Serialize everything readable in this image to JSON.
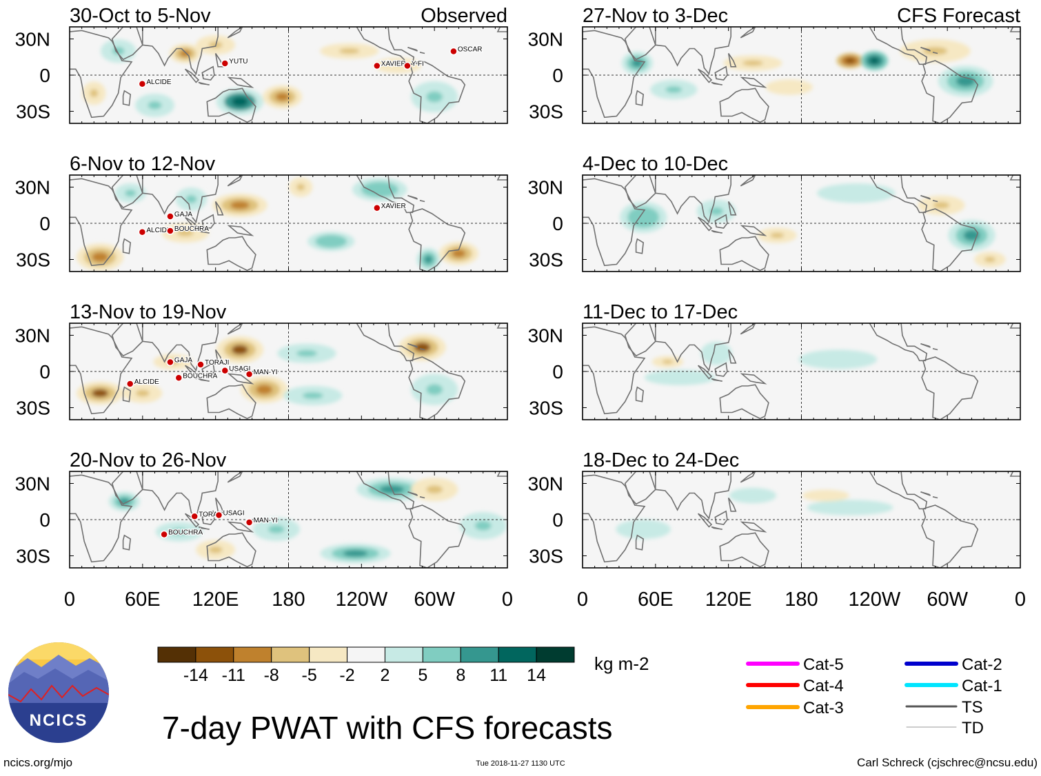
{
  "header": {
    "left_title": "Observed",
    "right_title": "CFS Forecast"
  },
  "lat_labels": [
    "30N",
    "0",
    "30S"
  ],
  "lon_labels": [
    "0",
    "60E",
    "120E",
    "180",
    "120W",
    "60W",
    "0"
  ],
  "panels": {
    "observed": [
      {
        "period": "30-Oct to 5-Nov",
        "storms": [
          "YUTU",
          "OSCAR",
          "XAVIER",
          "Y-FI",
          "ALCIDE"
        ]
      },
      {
        "period": "6-Nov to 12-Nov",
        "storms": [
          "XAVIER",
          "GAJA",
          "ALCIDE",
          "BOUCHRA"
        ]
      },
      {
        "period": "13-Nov to 19-Nov",
        "storms": [
          "GAJA",
          "TORAJI",
          "USAGI",
          "MAN-YI",
          "BOUCHRA",
          "ALCIDE"
        ]
      },
      {
        "period": "20-Nov to 26-Nov",
        "storms": [
          "TORAJI",
          "USAGI",
          "MAN-YI",
          "BOUCHRA"
        ]
      }
    ],
    "forecast": [
      {
        "period": "27-Nov to 3-Dec"
      },
      {
        "period": "4-Dec to 10-Dec"
      },
      {
        "period": "11-Dec to 17-Dec"
      },
      {
        "period": "18-Dec to 24-Dec"
      }
    ]
  },
  "colorbar": {
    "tick_labels": [
      "-14",
      "-11",
      "-8",
      "-5",
      "-2",
      "2",
      "5",
      "8",
      "11",
      "14"
    ],
    "colors": [
      "#543005",
      "#8c510a",
      "#bf812d",
      "#dfc27d",
      "#f6e8c3",
      "#f5f5f5",
      "#c7eae5",
      "#80cdc1",
      "#35978f",
      "#01665e",
      "#003c30"
    ],
    "units": "kg m-2"
  },
  "legend": {
    "items": [
      {
        "label": "Cat-5",
        "color": "#ff00ff"
      },
      {
        "label": "Cat-4",
        "color": "#ff0000"
      },
      {
        "label": "Cat-3",
        "color": "#ffa500"
      },
      {
        "label": "Cat-2",
        "color": "#0000cd"
      },
      {
        "label": "Cat-1",
        "color": "#00e5ff"
      },
      {
        "label": "TS",
        "color": "#555555"
      },
      {
        "label": "TD",
        "color": "#999999"
      }
    ]
  },
  "footer": {
    "logo_text": "NCICS",
    "main_title": "7-day PWAT with CFS forecasts",
    "website": "ncics.org/mjo",
    "timestamp": "Tue 2018-11-27 1130 UTC",
    "author": "Carl Schreck (cjschrec@ncsu.edu)"
  },
  "chart_data": {
    "type": "heatmap",
    "title": "7-day PWAT with CFS forecasts",
    "variable": "Precipitable water anomaly",
    "units": "kg m-2",
    "x_axis": {
      "range_deg": [
        0,
        360
      ],
      "ticks": [
        "0",
        "60E",
        "120E",
        "180",
        "120W",
        "60W",
        "0"
      ]
    },
    "y_axis": {
      "range_deg": [
        -40,
        40
      ],
      "ticks": [
        "30N",
        "0",
        "30S"
      ]
    },
    "contour_levels": [
      -14,
      -11,
      -8,
      -5,
      -2,
      2,
      5,
      8,
      11,
      14
    ],
    "left_column": "Observed",
    "right_column": "CFS Forecast",
    "blobs": [
      {
        "panel": 0,
        "lon": 95,
        "lat": 18,
        "v": -9,
        "rx": 8,
        "ry": 5
      },
      {
        "panel": 0,
        "lon": 120,
        "lat": 25,
        "v": -7,
        "rx": 10,
        "ry": 5
      },
      {
        "panel": 0,
        "lon": 40,
        "lat": 20,
        "v": 7,
        "rx": 9,
        "ry": 6
      },
      {
        "panel": 0,
        "lon": 140,
        "lat": -22,
        "v": 12,
        "rx": 12,
        "ry": 7
      },
      {
        "panel": 0,
        "lon": 175,
        "lat": -18,
        "v": -9,
        "rx": 10,
        "ry": 6
      },
      {
        "panel": 0,
        "lon": 70,
        "lat": -25,
        "v": 7,
        "rx": 10,
        "ry": 6
      },
      {
        "panel": 0,
        "lon": 230,
        "lat": 20,
        "v": -5,
        "rx": 15,
        "ry": 4
      },
      {
        "panel": 0,
        "lon": 300,
        "lat": -18,
        "v": 6,
        "rx": 12,
        "ry": 8
      },
      {
        "panel": 0,
        "lon": 270,
        "lat": 8,
        "v": -4,
        "rx": 12,
        "ry": 4
      },
      {
        "panel": 0,
        "lon": 20,
        "lat": -15,
        "v": -6,
        "rx": 6,
        "ry": 6
      },
      {
        "panel": 1,
        "lon": 140,
        "lat": 15,
        "v": -10,
        "rx": 14,
        "ry": 6
      },
      {
        "panel": 1,
        "lon": 100,
        "lat": 20,
        "v": 7,
        "rx": 8,
        "ry": 6
      },
      {
        "panel": 1,
        "lon": 25,
        "lat": -28,
        "v": -10,
        "rx": 12,
        "ry": 7
      },
      {
        "panel": 1,
        "lon": 95,
        "lat": -8,
        "v": -6,
        "rx": 12,
        "ry": 5
      },
      {
        "panel": 1,
        "lon": 215,
        "lat": -15,
        "v": 8,
        "rx": 12,
        "ry": 5
      },
      {
        "panel": 1,
        "lon": 255,
        "lat": 28,
        "v": 8,
        "rx": 14,
        "ry": 6
      },
      {
        "panel": 1,
        "lon": 320,
        "lat": -25,
        "v": -9,
        "rx": 10,
        "ry": 6
      },
      {
        "panel": 1,
        "lon": 295,
        "lat": -30,
        "v": 9,
        "rx": 6,
        "ry": 6
      },
      {
        "panel": 1,
        "lon": 190,
        "lat": 30,
        "v": -7,
        "rx": 6,
        "ry": 5
      },
      {
        "panel": 1,
        "lon": 50,
        "lat": 25,
        "v": 7,
        "rx": 8,
        "ry": 5
      },
      {
        "panel": 2,
        "lon": 140,
        "lat": 18,
        "v": -11,
        "rx": 12,
        "ry": 7
      },
      {
        "panel": 2,
        "lon": 160,
        "lat": -15,
        "v": -10,
        "rx": 12,
        "ry": 7
      },
      {
        "panel": 2,
        "lon": 25,
        "lat": -18,
        "v": -11,
        "rx": 12,
        "ry": 6
      },
      {
        "panel": 2,
        "lon": 60,
        "lat": -18,
        "v": -7,
        "rx": 10,
        "ry": 5
      },
      {
        "panel": 2,
        "lon": 290,
        "lat": 20,
        "v": -11,
        "rx": 12,
        "ry": 7
      },
      {
        "panel": 2,
        "lon": 195,
        "lat": 15,
        "v": 6,
        "rx": 15,
        "ry": 5
      },
      {
        "panel": 2,
        "lon": 200,
        "lat": -20,
        "v": 7,
        "rx": 15,
        "ry": 5
      },
      {
        "panel": 2,
        "lon": 300,
        "lat": -15,
        "v": 7,
        "rx": 12,
        "ry": 8
      },
      {
        "panel": 2,
        "lon": 85,
        "lat": 8,
        "v": -7,
        "rx": 10,
        "ry": 4
      },
      {
        "panel": 3,
        "lon": 45,
        "lat": 15,
        "v": 11,
        "rx": 8,
        "ry": 5
      },
      {
        "panel": 3,
        "lon": 235,
        "lat": -28,
        "v": 10,
        "rx": 18,
        "ry": 5
      },
      {
        "panel": 3,
        "lon": 265,
        "lat": 25,
        "v": 9,
        "rx": 18,
        "ry": 6
      },
      {
        "panel": 3,
        "lon": 300,
        "lat": 25,
        "v": -6,
        "rx": 12,
        "ry": 6
      },
      {
        "panel": 3,
        "lon": 170,
        "lat": -8,
        "v": 7,
        "rx": 12,
        "ry": 6
      },
      {
        "panel": 3,
        "lon": 90,
        "lat": -10,
        "v": 6,
        "rx": 12,
        "ry": 5
      },
      {
        "panel": 3,
        "lon": 340,
        "lat": -5,
        "v": 7,
        "rx": 12,
        "ry": 7
      },
      {
        "panel": 3,
        "lon": 120,
        "lat": -25,
        "v": -5,
        "rx": 10,
        "ry": 5
      },
      {
        "panel": 4,
        "lon": 220,
        "lat": 12,
        "v": -13,
        "rx": 7,
        "ry": 4
      },
      {
        "panel": 4,
        "lon": 240,
        "lat": 12,
        "v": 13,
        "rx": 7,
        "ry": 5
      },
      {
        "panel": 4,
        "lon": 315,
        "lat": -5,
        "v": 11,
        "rx": 14,
        "ry": 8
      },
      {
        "panel": 4,
        "lon": 290,
        "lat": 20,
        "v": -7,
        "rx": 18,
        "ry": 6
      },
      {
        "panel": 4,
        "lon": 45,
        "lat": 10,
        "v": 9,
        "rx": 8,
        "ry": 6
      },
      {
        "panel": 4,
        "lon": 75,
        "lat": -12,
        "v": 7,
        "rx": 12,
        "ry": 5
      },
      {
        "panel": 4,
        "lon": 140,
        "lat": 10,
        "v": -5,
        "rx": 15,
        "ry": 4
      },
      {
        "panel": 4,
        "lon": 170,
        "lat": -10,
        "v": -4,
        "rx": 12,
        "ry": 4
      },
      {
        "panel": 5,
        "lon": 320,
        "lat": -10,
        "v": 10,
        "rx": 12,
        "ry": 8
      },
      {
        "panel": 5,
        "lon": 295,
        "lat": 15,
        "v": -7,
        "rx": 12,
        "ry": 5
      },
      {
        "panel": 5,
        "lon": 335,
        "lat": -30,
        "v": -6,
        "rx": 8,
        "ry": 4
      },
      {
        "panel": 5,
        "lon": 50,
        "lat": 5,
        "v": 8,
        "rx": 12,
        "ry": 8
      },
      {
        "panel": 5,
        "lon": 110,
        "lat": 10,
        "v": 6,
        "rx": 10,
        "ry": 6
      },
      {
        "panel": 5,
        "lon": 225,
        "lat": 25,
        "v": 5,
        "rx": 20,
        "ry": 5
      },
      {
        "panel": 5,
        "lon": 160,
        "lat": -10,
        "v": -5,
        "rx": 10,
        "ry": 4
      },
      {
        "panel": 6,
        "lon": 70,
        "lat": 8,
        "v": -6,
        "rx": 8,
        "ry": 3
      },
      {
        "panel": 6,
        "lon": 210,
        "lat": 10,
        "v": 4,
        "rx": 20,
        "ry": 5
      },
      {
        "panel": 6,
        "lon": 80,
        "lat": -5,
        "v": 4,
        "rx": 18,
        "ry": 4
      },
      {
        "panel": 6,
        "lon": 110,
        "lat": 15,
        "v": 5,
        "rx": 8,
        "ry": 6
      },
      {
        "panel": 7,
        "lon": 220,
        "lat": 10,
        "v": 5,
        "rx": 22,
        "ry": 4
      },
      {
        "panel": 7,
        "lon": 50,
        "lat": -8,
        "v": 4,
        "rx": 14,
        "ry": 5
      },
      {
        "panel": 7,
        "lon": 140,
        "lat": 20,
        "v": 4,
        "rx": 12,
        "ry": 4
      },
      {
        "panel": 7,
        "lon": 200,
        "lat": 20,
        "v": -3,
        "rx": 12,
        "ry": 3
      }
    ],
    "storm_markers": [
      {
        "panel": 0,
        "name": "YUTU",
        "lon": 130,
        "lat": 12
      },
      {
        "panel": 0,
        "name": "OSCAR",
        "lon": 318,
        "lat": 22
      },
      {
        "panel": 0,
        "name": "XAVIER",
        "lon": 255,
        "lat": 10
      },
      {
        "panel": 0,
        "name": "Y-FI",
        "lon": 280,
        "lat": 10
      },
      {
        "panel": 0,
        "name": "ALCIDE",
        "lon": 62,
        "lat": -5
      },
      {
        "panel": 1,
        "name": "XAVIER",
        "lon": 255,
        "lat": 15
      },
      {
        "panel": 1,
        "name": "GAJA",
        "lon": 85,
        "lat": 8
      },
      {
        "panel": 1,
        "name": "ALCIDE",
        "lon": 62,
        "lat": -5
      },
      {
        "panel": 1,
        "name": "BOUCHRA",
        "lon": 85,
        "lat": -4
      },
      {
        "panel": 2,
        "name": "GAJA",
        "lon": 85,
        "lat": 10
      },
      {
        "panel": 2,
        "name": "TORAJI",
        "lon": 110,
        "lat": 8
      },
      {
        "panel": 2,
        "name": "USAGI",
        "lon": 130,
        "lat": 3
      },
      {
        "panel": 2,
        "name": "MAN-YI",
        "lon": 150,
        "lat": 0
      },
      {
        "panel": 2,
        "name": "BOUCHRA",
        "lon": 92,
        "lat": -3
      },
      {
        "panel": 2,
        "name": "ALCIDE",
        "lon": 52,
        "lat": -8
      },
      {
        "panel": 3,
        "name": "TORAJI",
        "lon": 105,
        "lat": 5
      },
      {
        "panel": 3,
        "name": "USAGI",
        "lon": 125,
        "lat": 6
      },
      {
        "panel": 3,
        "name": "MAN-YI",
        "lon": 150,
        "lat": 0
      },
      {
        "panel": 3,
        "name": "BOUCHRA",
        "lon": 80,
        "lat": -10
      }
    ]
  }
}
